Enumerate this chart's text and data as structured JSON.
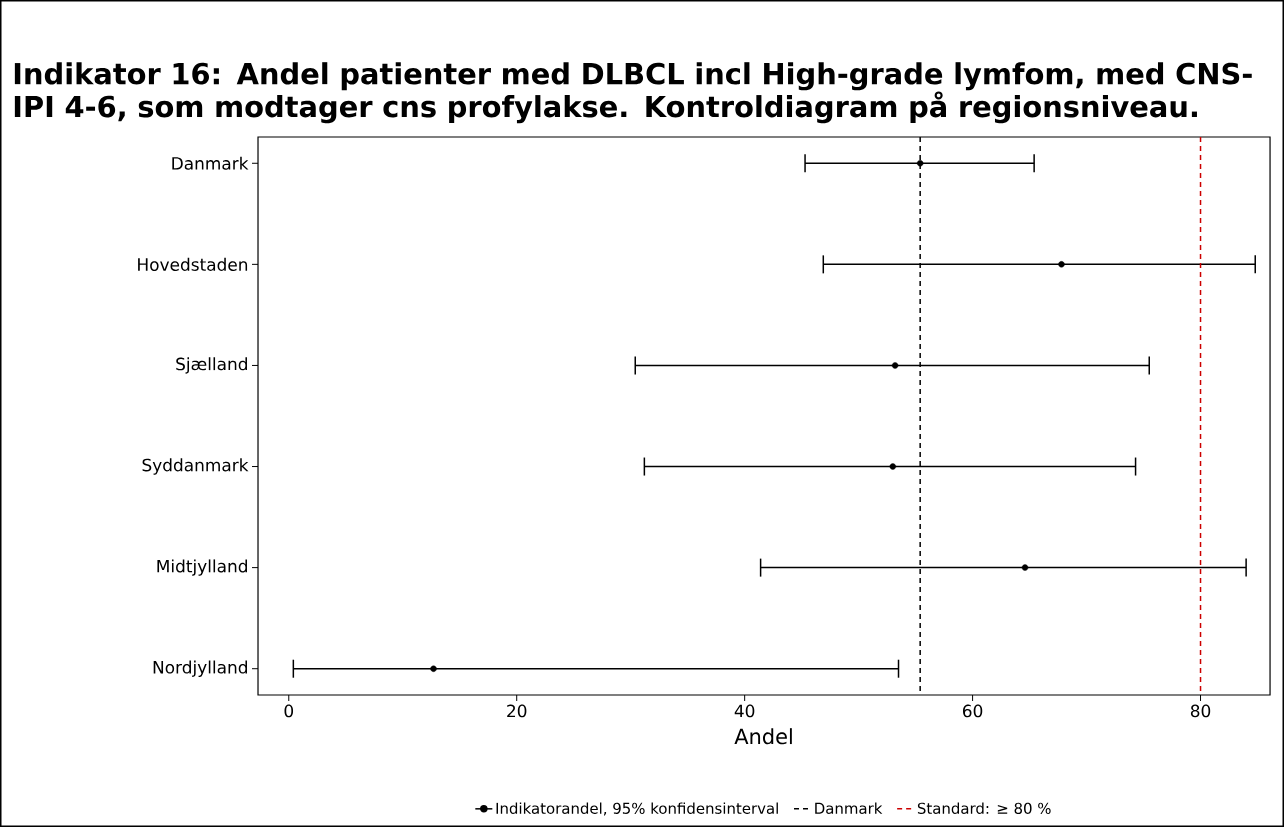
{
  "chart_data": {
    "type": "scatter",
    "orientation": "horizontal",
    "title": "Indikator 16: Andel patienter med DLBCL incl High-grade lymfom, med CNS-IPI 4-6, som modtager cns profylakse. Kontroldiagram på regionsniveau.",
    "xlabel": "Andel",
    "categories": [
      "Danmark",
      "Hovedstaden",
      "Sjælland",
      "Syddanmark",
      "Midtjylland",
      "Nordjylland"
    ],
    "series": [
      {
        "name": "Indikatorandel, 95% konfidensinterval",
        "color": "#000000",
        "values": [
          55.4,
          67.8,
          53.2,
          53.0,
          64.6,
          12.7
        ],
        "errors": [
          [
            45.3,
            65.4
          ],
          [
            46.9,
            84.8
          ],
          [
            30.4,
            75.5
          ],
          [
            31.2,
            74.3
          ],
          [
            41.4,
            84.0
          ],
          [
            0.4,
            53.5
          ]
        ]
      }
    ],
    "xlim": [
      -2.7,
      86.1
    ],
    "xticks": [
      0,
      20,
      40,
      60,
      80
    ],
    "ref_lines": [
      {
        "axis": "x",
        "value": 55.4,
        "label": "Danmark",
        "color": "#000000",
        "line_style": "dashed"
      },
      {
        "axis": "x",
        "value": 80,
        "label": "Standard: ≥ 80 %",
        "color": "#cc0000",
        "line_style": "dashed"
      }
    ],
    "marker": "circle",
    "legend": "bottom"
  }
}
